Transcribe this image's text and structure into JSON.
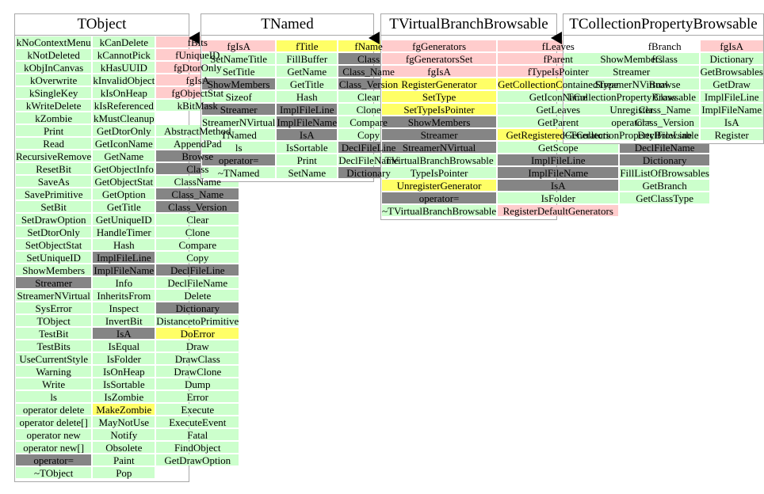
{
  "colors": {
    "green_member": "#ccffcc",
    "pink_attribute": "#ffcccc",
    "yellow_highlight": "#ffff66",
    "gray_overridden": "#858585"
  },
  "icons": {
    "inheritance_arrow": "left-triangle"
  },
  "panels": [
    {
      "title": "TObject",
      "columns": [
        [
          [
            "kNoContextMenu",
            "g"
          ],
          [
            "kNotDeleted",
            "g"
          ],
          [
            "kObjInCanvas",
            "g"
          ],
          [
            "kOverwrite",
            "g"
          ],
          [
            "kSingleKey",
            "g"
          ],
          [
            "kWriteDelete",
            "g"
          ],
          [
            "kZombie",
            "g"
          ],
          [
            "Print",
            "g"
          ],
          [
            "Read",
            "g"
          ],
          [
            "RecursiveRemove",
            "g"
          ],
          [
            "ResetBit",
            "g"
          ],
          [
            "SaveAs",
            "g"
          ],
          [
            "SavePrimitive",
            "g"
          ],
          [
            "SetBit",
            "g"
          ],
          [
            "SetDrawOption",
            "g"
          ],
          [
            "SetDtorOnly",
            "g"
          ],
          [
            "SetObjectStat",
            "g"
          ],
          [
            "SetUniqueID",
            "g"
          ],
          [
            "ShowMembers",
            "g"
          ],
          [
            "Streamer",
            "d"
          ],
          [
            "StreamerNVirtual",
            "g"
          ],
          [
            "SysError",
            "g"
          ],
          [
            "TObject",
            "g"
          ],
          [
            "TestBit",
            "g"
          ],
          [
            "TestBits",
            "g"
          ],
          [
            "UseCurrentStyle",
            "g"
          ],
          [
            "Warning",
            "g"
          ],
          [
            "Write",
            "g"
          ],
          [
            "ls",
            "g"
          ],
          [
            "operator delete",
            "g"
          ],
          [
            "operator delete[]",
            "g"
          ],
          [
            "operator new",
            "g"
          ],
          [
            "operator new[]",
            "g"
          ],
          [
            "operator=",
            "d"
          ],
          [
            "~TObject",
            "g"
          ]
        ],
        [
          [
            "kCanDelete",
            "g"
          ],
          [
            "kCannotPick",
            "g"
          ],
          [
            "kHasUUID",
            "g"
          ],
          [
            "kInvalidObject",
            "g"
          ],
          [
            "kIsOnHeap",
            "g"
          ],
          [
            "kIsReferenced",
            "g"
          ],
          [
            "kMustCleanup",
            "g"
          ],
          [
            "GetDtorOnly",
            "g"
          ],
          [
            "GetIconName",
            "g"
          ],
          [
            "GetName",
            "g"
          ],
          [
            "GetObjectInfo",
            "g"
          ],
          [
            "GetObjectStat",
            "g"
          ],
          [
            "GetOption",
            "g"
          ],
          [
            "GetTitle",
            "g"
          ],
          [
            "GetUniqueID",
            "g"
          ],
          [
            "HandleTimer",
            "g"
          ],
          [
            "Hash",
            "g"
          ],
          [
            "ImplFileLine",
            "d"
          ],
          [
            "ImplFileName",
            "d"
          ],
          [
            "Info",
            "g"
          ],
          [
            "InheritsFrom",
            "g"
          ],
          [
            "Inspect",
            "g"
          ],
          [
            "InvertBit",
            "g"
          ],
          [
            "IsA",
            "d"
          ],
          [
            "IsEqual",
            "g"
          ],
          [
            "IsFolder",
            "g"
          ],
          [
            "IsOnHeap",
            "g"
          ],
          [
            "IsSortable",
            "g"
          ],
          [
            "IsZombie",
            "g"
          ],
          [
            "MakeZombie",
            "y"
          ],
          [
            "MayNotUse",
            "g"
          ],
          [
            "Notify",
            "g"
          ],
          [
            "Obsolete",
            "g"
          ],
          [
            "Paint",
            "g"
          ],
          [
            "Pop",
            "g"
          ]
        ],
        [
          [
            "fBits",
            "p"
          ],
          [
            "fUniqueID",
            "p"
          ],
          [
            "fgDtorOnly",
            "p"
          ],
          [
            "fgIsA",
            "p"
          ],
          [
            "fgObjectStat",
            "p"
          ],
          [
            "kBitMask",
            "g"
          ],
          null,
          [
            "AbstractMethod",
            "g"
          ],
          [
            "AppendPad",
            "g"
          ],
          [
            "Browse",
            "d"
          ],
          [
            "Class",
            "d"
          ],
          [
            "ClassName",
            "g"
          ],
          [
            "Class_Name",
            "d"
          ],
          [
            "Class_Version",
            "d"
          ],
          [
            "Clear",
            "g"
          ],
          [
            "Clone",
            "g"
          ],
          [
            "Compare",
            "g"
          ],
          [
            "Copy",
            "g"
          ],
          [
            "DeclFileLine",
            "d"
          ],
          [
            "DeclFileName",
            "g"
          ],
          [
            "Delete",
            "g"
          ],
          [
            "Dictionary",
            "d"
          ],
          [
            "DistancetoPrimitive",
            "g"
          ],
          [
            "DoError",
            "y"
          ],
          [
            "Draw",
            "g"
          ],
          [
            "DrawClass",
            "g"
          ],
          [
            "DrawClone",
            "g"
          ],
          [
            "Dump",
            "g"
          ],
          [
            "Error",
            "g"
          ],
          [
            "Execute",
            "g"
          ],
          [
            "ExecuteEvent",
            "g"
          ],
          [
            "Fatal",
            "g"
          ],
          [
            "FindObject",
            "g"
          ],
          [
            "GetDrawOption",
            "g"
          ]
        ]
      ]
    },
    {
      "title": "TNamed",
      "columns": [
        [
          [
            "fgIsA",
            "p"
          ],
          [
            "SetNameTitle",
            "g"
          ],
          [
            "SetTitle",
            "g"
          ],
          [
            "ShowMembers",
            "d"
          ],
          [
            "Sizeof",
            "g"
          ],
          [
            "Streamer",
            "d"
          ],
          [
            "StreamerNVirtual",
            "g"
          ],
          [
            "TNamed",
            "g"
          ],
          [
            "ls",
            "g"
          ],
          [
            "operator=",
            "d"
          ],
          [
            "~TNamed",
            "g"
          ]
        ],
        [
          [
            "fTitle",
            "y"
          ],
          [
            "FillBuffer",
            "g"
          ],
          [
            "GetName",
            "g"
          ],
          [
            "GetTitle",
            "g"
          ],
          [
            "Hash",
            "g"
          ],
          [
            "ImplFileLine",
            "d"
          ],
          [
            "ImplFileName",
            "d"
          ],
          [
            "IsA",
            "d"
          ],
          [
            "IsSortable",
            "g"
          ],
          [
            "Print",
            "g"
          ],
          [
            "SetName",
            "g"
          ]
        ],
        [
          [
            "fName",
            "y"
          ],
          [
            "Class",
            "d"
          ],
          [
            "Class_Name",
            "d"
          ],
          [
            "Class_Version",
            "d"
          ],
          [
            "Clear",
            "g"
          ],
          [
            "Clone",
            "g"
          ],
          [
            "Compare",
            "g"
          ],
          [
            "Copy",
            "g"
          ],
          [
            "DeclFileLine",
            "d"
          ],
          [
            "DeclFileName",
            "g"
          ],
          [
            "Dictionary",
            "d"
          ]
        ]
      ]
    },
    {
      "title": "TVirtualBranchBrowsable",
      "columns": [
        [
          [
            "fgGenerators",
            "p"
          ],
          [
            "fgGeneratorsSet",
            "p"
          ],
          [
            "fgIsA",
            "p"
          ],
          [
            "RegisterGenerator",
            "y"
          ],
          [
            "SetType",
            "y"
          ],
          [
            "SetTypeIsPointer",
            "y"
          ],
          [
            "ShowMembers",
            "d"
          ],
          [
            "Streamer",
            "d"
          ],
          [
            "StreamerNVirtual",
            "d"
          ],
          [
            "TVirtualBranchBrowsable",
            "g"
          ],
          [
            "TypeIsPointer",
            "g"
          ],
          [
            "UnregisterGenerator",
            "y"
          ],
          [
            "operator=",
            "d"
          ],
          [
            "~TVirtualBranchBrowsable",
            "g"
          ]
        ],
        [
          [
            "fLeaves",
            "p"
          ],
          [
            "fParent",
            "p"
          ],
          [
            "fTypeIsPointer",
            "p"
          ],
          [
            "GetCollectionContainedType",
            "y"
          ],
          [
            "GetIconName",
            "g"
          ],
          [
            "GetLeaves",
            "g"
          ],
          [
            "GetParent",
            "g"
          ],
          [
            "GetRegisteredGenerators",
            "y"
          ],
          [
            "GetScope",
            "g"
          ],
          [
            "ImplFileLine",
            "d"
          ],
          [
            "ImplFileName",
            "d"
          ],
          [
            "IsA",
            "d"
          ],
          [
            "IsFolder",
            "g"
          ],
          [
            "RegisterDefaultGenerators",
            "p"
          ]
        ],
        [
          [
            "fBranch",
            "p"
          ],
          [
            "fClass",
            "p"
          ],
          null,
          [
            "Browse",
            "d"
          ],
          [
            "Class",
            "d"
          ],
          [
            "Class_Name",
            "d"
          ],
          [
            "Class_Version",
            "d"
          ],
          [
            "DeclFileLine",
            "d"
          ],
          [
            "DeclFileName",
            "d"
          ],
          [
            "Dictionary",
            "d"
          ],
          [
            "FillListOfBrowsables",
            "g"
          ],
          [
            "GetBranch",
            "g"
          ],
          [
            "GetClassType",
            "g"
          ]
        ]
      ]
    },
    {
      "title": "TCollectionPropertyBrowsable",
      "columns": [
        [
          null,
          [
            "ShowMembers",
            "g"
          ],
          [
            "Streamer",
            "g"
          ],
          [
            "StreamerNVirtual",
            "g"
          ],
          [
            "TCollectionPropertyBrowsable",
            "g"
          ],
          [
            "Unregister",
            "g"
          ],
          [
            "operator=",
            "g"
          ],
          [
            "~TCollectionPropertyBrowsable",
            "g"
          ]
        ],
        [
          [
            "fgIsA",
            "p"
          ],
          [
            "Dictionary",
            "g"
          ],
          [
            "GetBrowsables",
            "g"
          ],
          [
            "GetDraw",
            "g"
          ],
          [
            "ImplFileLine",
            "g"
          ],
          [
            "ImplFileName",
            "g"
          ],
          [
            "IsA",
            "g"
          ],
          [
            "Register",
            "g"
          ]
        ],
        [
          [
            "fDraw",
            "p"
          ],
          [
            "Browse",
            "g"
          ],
          [
            "Class",
            "g"
          ],
          [
            "Class_Name",
            "g"
          ],
          [
            "Class_Version",
            "g"
          ],
          [
            "DeclFileLine",
            "g"
          ],
          [
            "DeclFileName",
            "g"
          ]
        ]
      ]
    }
  ]
}
